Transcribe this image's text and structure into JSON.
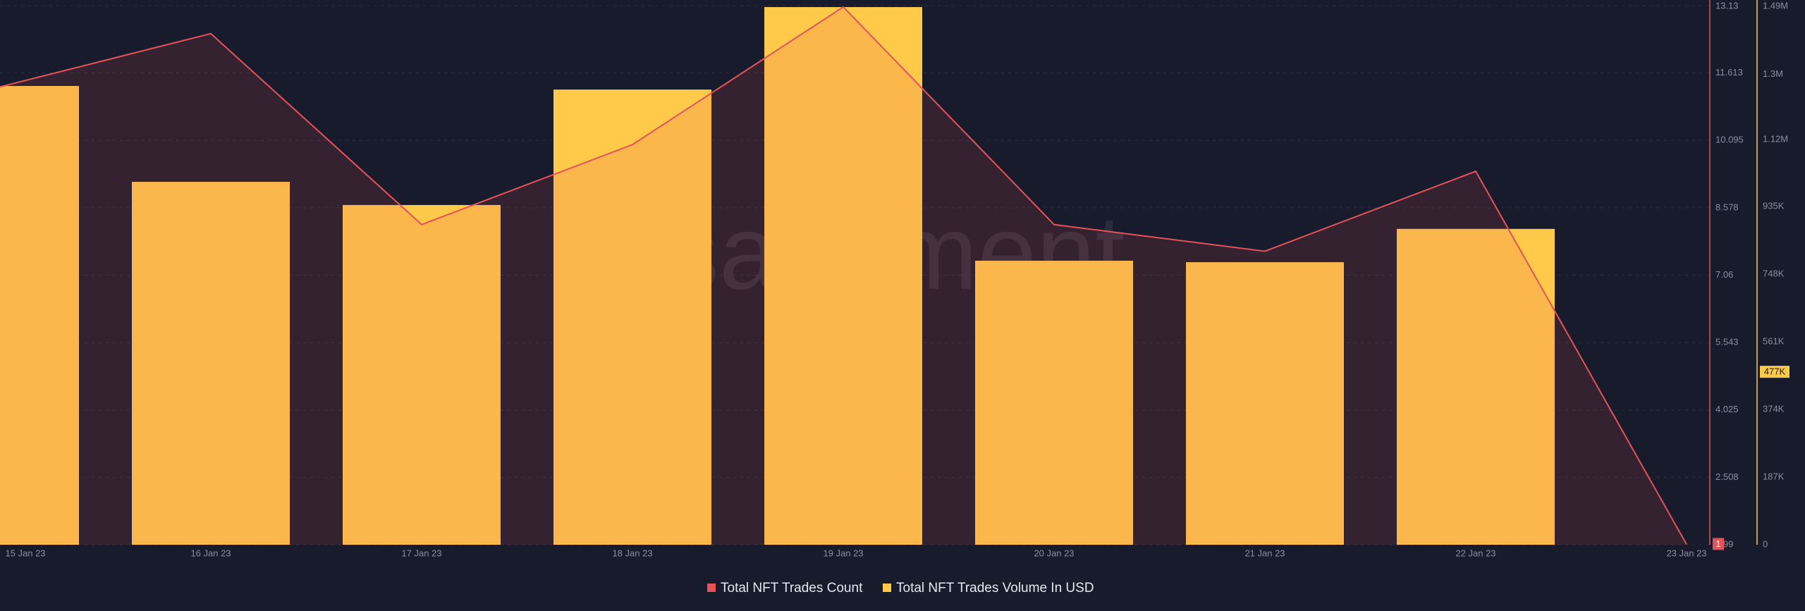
{
  "chart_data": {
    "type": "bar-line",
    "watermark": "santiment",
    "categories": [
      "15 Jan 23",
      "16 Jan 23",
      "17 Jan 23",
      "18 Jan 23",
      "19 Jan 23",
      "20 Jan 23",
      "21 Jan 23",
      "22 Jan 23",
      "23 Jan 23"
    ],
    "series": [
      {
        "name": "Total NFT Trades Count",
        "type": "line",
        "color": "#e5525a",
        "axis": "y",
        "values": [
          11.3,
          12.5,
          8.2,
          10,
          13.1,
          8.2,
          7.6,
          9.4,
          1
        ]
      },
      {
        "name": "Total NFT Trades Volume In USD",
        "type": "bar",
        "color": "#ffc94a",
        "axis": "y2",
        "values": [
          1268000,
          1003000,
          939000,
          1258000,
          1486000,
          785000,
          781000,
          873000,
          null
        ]
      }
    ],
    "ylim": [
      0.99,
      13.13
    ],
    "yticks": [
      0.99,
      2.508,
      4.025,
      5.543,
      7.06,
      8.578,
      10.095,
      11.613,
      13.13
    ],
    "y2lim": [
      0,
      1490000
    ],
    "y2ticks": [
      0,
      {
        "value": 187000,
        "label": "187K"
      },
      {
        "value": 374000,
        "label": "374K"
      },
      {
        "value": 561000,
        "label": "561K"
      },
      {
        "value": 748000,
        "label": "748K"
      },
      {
        "value": 935000,
        "label": "935K"
      },
      {
        "value": 1120000,
        "label": "1.12M"
      },
      {
        "value": 1300000,
        "label": "1.3M"
      },
      {
        "value": 1490000,
        "label": "1.49M"
      }
    ],
    "y_marker": {
      "value": 1,
      "label": "1"
    },
    "y2_marker": {
      "value": 477000,
      "label": "477K"
    },
    "grid": true
  }
}
